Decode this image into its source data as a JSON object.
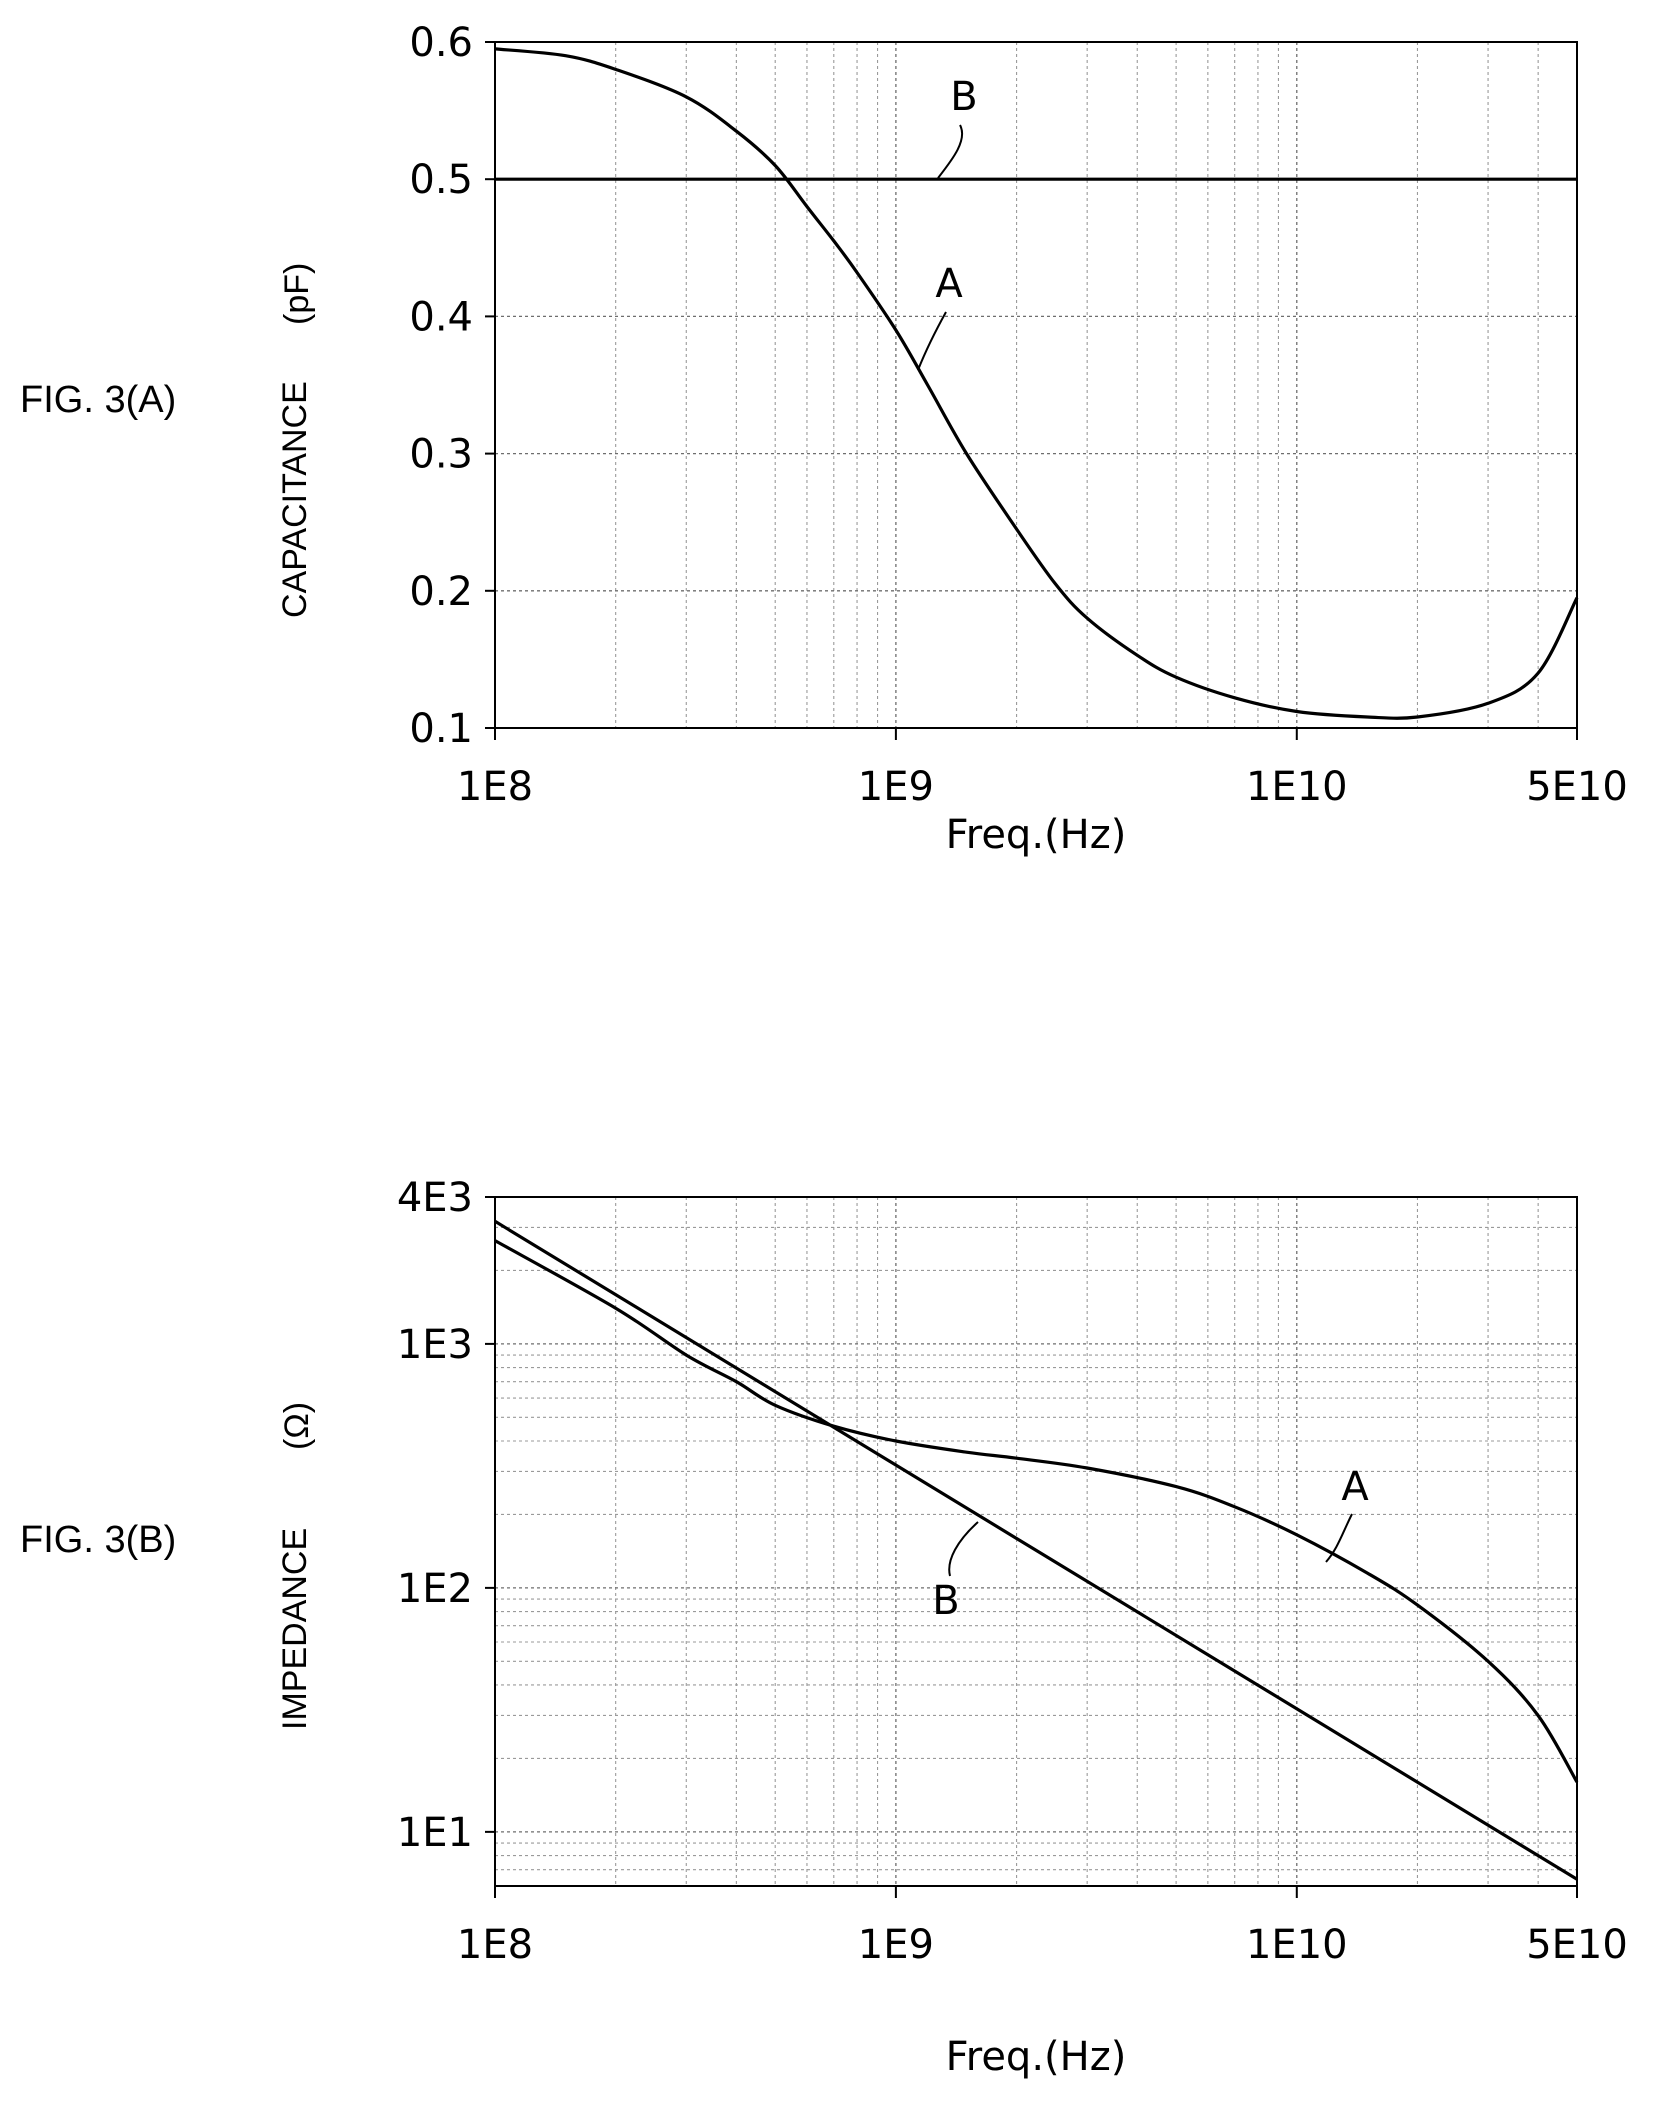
{
  "figures": [
    {
      "label": "FIG. 3(A)"
    },
    {
      "label": "FIG. 3(B)"
    }
  ],
  "chart_data": [
    {
      "type": "line",
      "xscale": "log",
      "xlim": [
        100000000.0,
        50000000000.0
      ],
      "ylim": [
        0.1,
        0.6
      ],
      "x_ticks": [
        100000000.0,
        1000000000.0,
        10000000000.0,
        50000000000.0
      ],
      "x_tick_labels": [
        "1E8",
        "1E9",
        "1E10",
        "5E10"
      ],
      "y_ticks": [
        0.1,
        0.2,
        0.3,
        0.4,
        0.5,
        0.6
      ],
      "y_tick_labels": [
        "0.1",
        "0.2",
        "0.3",
        "0.4",
        "0.5",
        "0.6"
      ],
      "xlabel": "Freq.(Hz)",
      "ylabel": "CAPACITANCE",
      "ylabel_unit": "(pF)",
      "grid": true,
      "series": [
        {
          "name": "A",
          "x": [
            100000000.0,
            150000000.0,
            200000000.0,
            300000000.0,
            400000000.0,
            500000000.0,
            600000000.0,
            700000000.0,
            800000000.0,
            1000000000.0,
            1200000000.0,
            1500000000.0,
            2000000000.0,
            2500000000.0,
            3000000000.0,
            4000000000.0,
            5000000000.0,
            7000000000.0,
            10000000000.0,
            15000000000.0,
            20000000000.0,
            30000000000.0,
            40000000000.0,
            50000000000.0
          ],
          "y": [
            0.595,
            0.59,
            0.58,
            0.56,
            0.535,
            0.51,
            0.48,
            0.455,
            0.432,
            0.39,
            0.35,
            0.3,
            0.245,
            0.205,
            0.18,
            0.153,
            0.137,
            0.122,
            0.112,
            0.108,
            0.108,
            0.118,
            0.14,
            0.195
          ]
        },
        {
          "name": "B",
          "x": [
            100000000.0,
            50000000000.0
          ],
          "y": [
            0.5,
            0.5
          ]
        }
      ]
    },
    {
      "type": "line",
      "xscale": "log",
      "yscale": "log",
      "xlim": [
        100000000.0,
        50000000000.0
      ],
      "ylim": [
        6,
        4000
      ],
      "x_ticks": [
        100000000.0,
        1000000000.0,
        10000000000.0,
        50000000000.0
      ],
      "x_tick_labels": [
        "1E8",
        "1E9",
        "1E10",
        "5E10"
      ],
      "y_ticks": [
        10,
        100,
        1000,
        4000
      ],
      "y_tick_labels": [
        "1E1",
        "1E2",
        "1E3",
        "4E3"
      ],
      "xlabel": "Freq.(Hz)",
      "ylabel": "IMPEDANCE",
      "ylabel_unit": "(Ω)",
      "grid": true,
      "series": [
        {
          "name": "A",
          "x": [
            100000000.0,
            200000000.0,
            300000000.0,
            400000000.0,
            500000000.0,
            700000000.0,
            1000000000.0,
            1500000000.0,
            2000000000.0,
            3000000000.0,
            5000000000.0,
            7000000000.0,
            10000000000.0,
            15000000000.0,
            20000000000.0,
            30000000000.0,
            40000000000.0,
            50000000000.0
          ],
          "y": [
            2650,
            1400,
            900,
            700,
            560,
            460,
            400,
            360,
            340,
            310,
            260,
            215,
            165,
            115,
            85,
            50,
            30,
            16
          ]
        },
        {
          "name": "B",
          "x": [
            100000000.0,
            50000000000.0
          ],
          "y": [
            3180,
            6.4
          ]
        }
      ]
    }
  ]
}
